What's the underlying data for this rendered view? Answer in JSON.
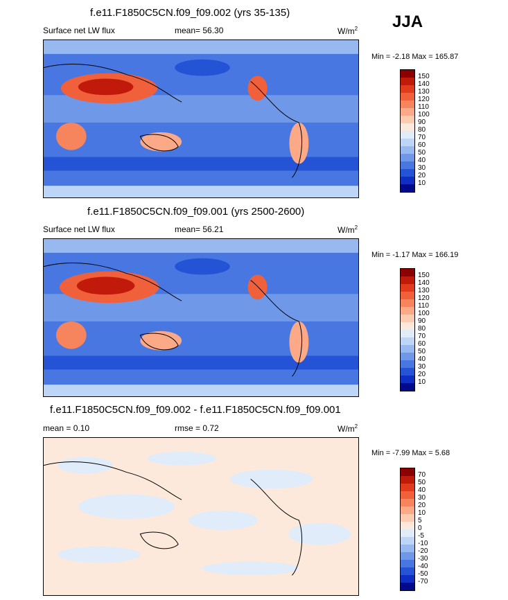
{
  "season": "JJA",
  "panels": [
    {
      "title": "f.e11.F1850C5CN.f09_f09.002 (yrs 35-135)",
      "left_label": "Surface net LW flux",
      "stat_label": "mean=  56.30",
      "units": "W/m",
      "units_sup": "2",
      "minmax": "Min =  -2.18 Max = 165.87"
    },
    {
      "title": "f.e11.F1850C5CN.f09_f09.001 (yrs 2500-2600)",
      "left_label": "Surface net LW flux",
      "stat_label": "mean=  56.21",
      "units": "W/m",
      "units_sup": "2",
      "minmax": "Min =  -1.17 Max = 166.19"
    },
    {
      "title": "f.e11.F1850C5CN.f09_f09.002 - f.e11.F1850C5CN.f09_f09.001",
      "left_label": "mean =   0.10",
      "stat_label": "rmse =   0.72",
      "units": "W/m",
      "units_sup": "2",
      "minmax": "Min =  -7.99 Max =   5.68"
    }
  ],
  "colorbar_abs": {
    "labels": [
      "150",
      "140",
      "130",
      "120",
      "110",
      "100",
      "90",
      "80",
      "70",
      "60",
      "50",
      "40",
      "30",
      "20",
      "10"
    ],
    "colors": [
      "#8b0000",
      "#c21a0a",
      "#e03c1c",
      "#f0603a",
      "#f6845c",
      "#fba987",
      "#fdcbb0",
      "#fde9dc",
      "#e0ecfa",
      "#bdd5f6",
      "#97b9f0",
      "#6f98e8",
      "#4877e2",
      "#2453d6",
      "#0f2ec2",
      "#000a8a"
    ]
  },
  "colorbar_diff": {
    "labels": [
      "70",
      "50",
      "40",
      "30",
      "20",
      "10",
      "5",
      "0",
      "-5",
      "-10",
      "-20",
      "-30",
      "-40",
      "-50",
      "-70"
    ],
    "colors": [
      "#8b0000",
      "#c21a0a",
      "#e03c1c",
      "#f0603a",
      "#f6845c",
      "#fba987",
      "#fdcbb0",
      "#fde9dc",
      "#e0ecfa",
      "#bdd5f6",
      "#97b9f0",
      "#6f98e8",
      "#4877e2",
      "#2453d6",
      "#0f2ec2",
      "#000a8a"
    ]
  }
}
